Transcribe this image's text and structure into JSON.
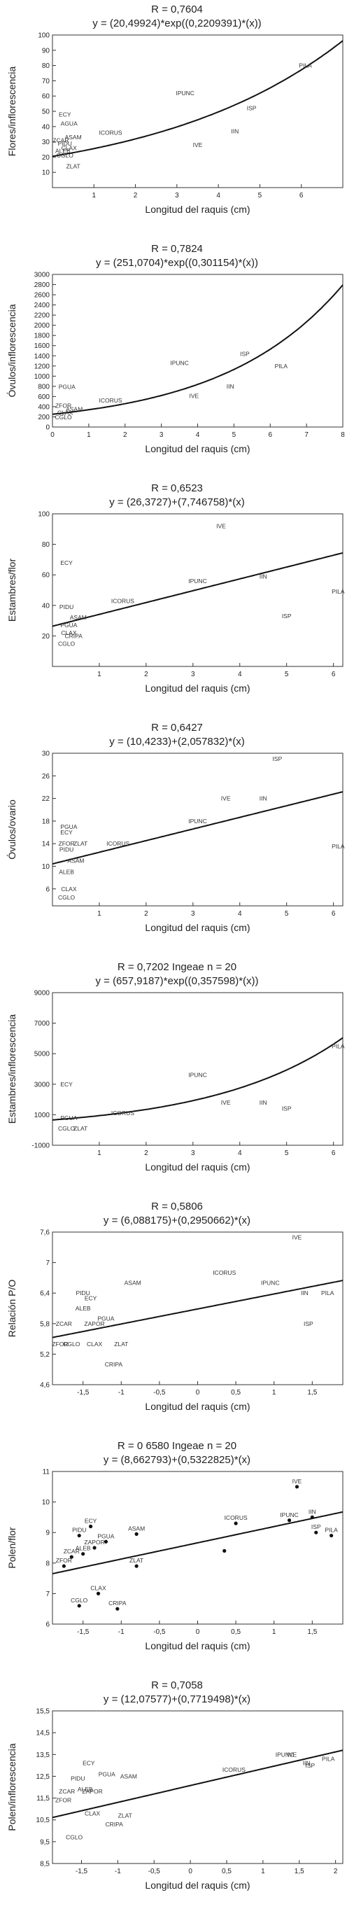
{
  "chart_data": [
    {
      "type": "scatter",
      "title": "R = 0,7604",
      "subtitle": "y = (20,49924)*exp((0,2209391)*(x))",
      "xlabel": "Longitud del raquis (cm)",
      "ylabel": "Flores/inflorescencia",
      "xlim": [
        0,
        7
      ],
      "ylim": [
        0,
        100
      ],
      "xticks": [
        1,
        2,
        3,
        4,
        5,
        6
      ],
      "yticks": [
        10,
        20,
        30,
        40,
        50,
        60,
        70,
        80,
        90,
        100
      ],
      "fit": {
        "kind": "exp",
        "a": 20.49924,
        "b": 0.2209391
      },
      "markers": false,
      "points": [
        {
          "label": "PILA",
          "x": 6.1,
          "y": 80
        },
        {
          "label": "IPUNC",
          "x": 3.2,
          "y": 62
        },
        {
          "label": "ISP",
          "x": 4.8,
          "y": 52
        },
        {
          "label": "IIN",
          "x": 4.4,
          "y": 37
        },
        {
          "label": "IVE",
          "x": 3.5,
          "y": 28
        },
        {
          "label": "ICORUS",
          "x": 1.4,
          "y": 36
        },
        {
          "label": "ECY",
          "x": 0.3,
          "y": 48
        },
        {
          "label": "AGUA",
          "x": 0.4,
          "y": 42
        },
        {
          "label": "ASAM",
          "x": 0.5,
          "y": 33
        },
        {
          "label": "ZCAR",
          "x": 0.2,
          "y": 31
        },
        {
          "label": "PIDU",
          "x": 0.3,
          "y": 29
        },
        {
          "label": "CLAX",
          "x": 0.4,
          "y": 26
        },
        {
          "label": "ALEB",
          "x": 0.25,
          "y": 24
        },
        {
          "label": "CGLO",
          "x": 0.3,
          "y": 21
        },
        {
          "label": "ZLAT",
          "x": 0.5,
          "y": 14
        }
      ]
    },
    {
      "type": "scatter",
      "title": "R = 0,7824",
      "subtitle": "y = (251,0704)*exp((0,301154)*(x))",
      "xlabel": "Longitud del raquis (cm)",
      "ylabel": "Óvulos/inflorescencia",
      "xlim": [
        0,
        8
      ],
      "ylim": [
        0,
        3000
      ],
      "xticks": [
        0,
        1,
        2,
        3,
        4,
        5,
        6,
        7,
        8
      ],
      "yticks": [
        0,
        200,
        400,
        600,
        800,
        1000,
        1200,
        1400,
        1600,
        1800,
        2000,
        2200,
        2400,
        2600,
        2800,
        3000
      ],
      "yticklabels": [
        "0",
        "200",
        "400",
        "600",
        "800",
        "1000",
        "1200",
        "1400",
        "1600",
        "1800",
        "2000",
        "2200",
        "2400",
        "2600",
        "2800",
        "3000"
      ],
      "fit": {
        "kind": "exp",
        "a": 251.0704,
        "b": 0.301154
      },
      "markers": false,
      "points": [
        {
          "label": "ISP",
          "x": 5.3,
          "y": 1440
        },
        {
          "label": "PILA",
          "x": 6.3,
          "y": 1200
        },
        {
          "label": "IPUNC",
          "x": 3.5,
          "y": 1260
        },
        {
          "label": "IIN",
          "x": 4.9,
          "y": 800
        },
        {
          "label": "IVE",
          "x": 3.9,
          "y": 610
        },
        {
          "label": "ICORUS",
          "x": 1.6,
          "y": 520
        },
        {
          "label": "PGUA",
          "x": 0.4,
          "y": 790
        },
        {
          "label": "ZFOR",
          "x": 0.3,
          "y": 420
        },
        {
          "label": "ASAM",
          "x": 0.6,
          "y": 350
        },
        {
          "label": "CLAX",
          "x": 0.35,
          "y": 280
        },
        {
          "label": "CGLO",
          "x": 0.3,
          "y": 190
        }
      ]
    },
    {
      "type": "scatter",
      "title": "R = 0,6523",
      "subtitle": "y = (26,3727)+(7,746758)*(x)",
      "xlabel": "Longitud del raquis (cm)",
      "ylabel": "Estambres/flor",
      "xlim": [
        0,
        6.2
      ],
      "ylim": [
        0,
        100
      ],
      "xticks": [
        1,
        2,
        3,
        4,
        5,
        6
      ],
      "yticks": [
        20,
        40,
        60,
        80,
        100
      ],
      "fit": {
        "kind": "linear",
        "a": 26.3727,
        "b": 7.746758
      },
      "markers": false,
      "points": [
        {
          "label": "IVE",
          "x": 3.6,
          "y": 92
        },
        {
          "label": "ECY",
          "x": 0.3,
          "y": 68
        },
        {
          "label": "IIN",
          "x": 4.5,
          "y": 59
        },
        {
          "label": "IPUNC",
          "x": 3.1,
          "y": 56
        },
        {
          "label": "PILA",
          "x": 6.1,
          "y": 49
        },
        {
          "label": "ICORUS",
          "x": 1.5,
          "y": 43
        },
        {
          "label": "PIDU",
          "x": 0.3,
          "y": 39
        },
        {
          "label": "ISP",
          "x": 5.0,
          "y": 33
        },
        {
          "label": "ASAM",
          "x": 0.55,
          "y": 32
        },
        {
          "label": "PGUA",
          "x": 0.35,
          "y": 27
        },
        {
          "label": "CLAX",
          "x": 0.35,
          "y": 22
        },
        {
          "label": "CRIPA",
          "x": 0.45,
          "y": 20
        },
        {
          "label": "CGLO",
          "x": 0.3,
          "y": 15
        }
      ]
    },
    {
      "type": "scatter",
      "title": "R = 0,6427",
      "subtitle": "y = (10,4233)+(2,057832)*(x)",
      "xlabel": "Longitud del raquis (cm)",
      "ylabel": "Óvulos/ovario",
      "xlim": [
        0,
        6.2
      ],
      "ylim": [
        3,
        30
      ],
      "xticks": [
        1,
        2,
        3,
        4,
        5,
        6
      ],
      "yticks": [
        6,
        10,
        14,
        18,
        22,
        26,
        30
      ],
      "fit": {
        "kind": "linear",
        "a": 10.4233,
        "b": 2.057832
      },
      "markers": false,
      "points": [
        {
          "label": "ISP",
          "x": 4.8,
          "y": 29
        },
        {
          "label": "IVE",
          "x": 3.7,
          "y": 22
        },
        {
          "label": "IIN",
          "x": 4.5,
          "y": 22
        },
        {
          "label": "IPUNC",
          "x": 3.1,
          "y": 18
        },
        {
          "label": "PGUA",
          "x": 0.35,
          "y": 17
        },
        {
          "label": "ECY",
          "x": 0.3,
          "y": 16
        },
        {
          "label": "ZFOR",
          "x": 0.3,
          "y": 14
        },
        {
          "label": "ZLAT",
          "x": 0.6,
          "y": 14
        },
        {
          "label": "ICORUS",
          "x": 1.4,
          "y": 14
        },
        {
          "label": "PILA",
          "x": 6.1,
          "y": 13.5
        },
        {
          "label": "PIDU",
          "x": 0.3,
          "y": 13
        },
        {
          "label": "ASAM",
          "x": 0.5,
          "y": 11
        },
        {
          "label": "ALEB",
          "x": 0.3,
          "y": 9
        },
        {
          "label": "CLAX",
          "x": 0.35,
          "y": 6
        },
        {
          "label": "CGLO",
          "x": 0.3,
          "y": 4.5
        }
      ]
    },
    {
      "type": "scatter",
      "title": "R = 0,7202 Ingeae n = 20",
      "subtitle": "y = (657,9187)*exp((0,357598)*(x))",
      "xlabel": "Longitud del raquis (cm)",
      "ylabel": "Estambres/inflorescencia",
      "xlim": [
        0,
        6.2
      ],
      "ylim": [
        -1000,
        9000
      ],
      "xticks": [
        1,
        2,
        3,
        4,
        5,
        6
      ],
      "yticks": [
        -1000,
        1000,
        3000,
        5000,
        7000,
        9000
      ],
      "fit": {
        "kind": "exp",
        "a": 657.9187,
        "b": 0.357598
      },
      "markers": false,
      "points": [
        {
          "label": "PILA",
          "x": 6.1,
          "y": 5500
        },
        {
          "label": "IPUNC",
          "x": 3.1,
          "y": 3600
        },
        {
          "label": "ECY",
          "x": 0.3,
          "y": 3000
        },
        {
          "label": "IVE",
          "x": 3.7,
          "y": 1800
        },
        {
          "label": "IIN",
          "x": 4.5,
          "y": 1800
        },
        {
          "label": "ISP",
          "x": 5.0,
          "y": 1400
        },
        {
          "label": "ICORUS",
          "x": 1.5,
          "y": 1100
        },
        {
          "label": "PGUA",
          "x": 0.35,
          "y": 800
        },
        {
          "label": "CGLO",
          "x": 0.3,
          "y": 100
        },
        {
          "label": "ZLAT",
          "x": 0.6,
          "y": 100
        }
      ]
    },
    {
      "type": "scatter",
      "title": "R = 0,5806",
      "subtitle": "y = (6,088175)+(0,2950662)*(x)",
      "xlabel": "Longitud del raquis (cm)",
      "ylabel": "Relación P/O",
      "xlim": [
        -1.9,
        1.9
      ],
      "ylim": [
        4.6,
        7.6
      ],
      "xticks": [
        -1.5,
        -1,
        -0.5,
        0,
        0.5,
        1,
        1.5
      ],
      "xticklabels": [
        "-1,5",
        "-1",
        "-0,5",
        "0",
        "0,5",
        "1",
        "1,5"
      ],
      "yticks": [
        4.6,
        5.2,
        5.8,
        6.4,
        7,
        7.6
      ],
      "yticklabels": [
        "4,6",
        "5,2",
        "5,8",
        "6,4",
        "7",
        "7,6"
      ],
      "fit": {
        "kind": "linear",
        "a": 6.088175,
        "b": 0.2950662
      },
      "markers": false,
      "points": [
        {
          "label": "IVE",
          "x": 1.3,
          "y": 7.5
        },
        {
          "label": "ICORUS",
          "x": 0.35,
          "y": 6.8
        },
        {
          "label": "ASAM",
          "x": -0.85,
          "y": 6.6
        },
        {
          "label": "IPUNC",
          "x": 0.95,
          "y": 6.6
        },
        {
          "label": "PIDU",
          "x": -1.5,
          "y": 6.4
        },
        {
          "label": "IIN",
          "x": 1.4,
          "y": 6.4
        },
        {
          "label": "PILA",
          "x": 1.7,
          "y": 6.4
        },
        {
          "label": "ECY",
          "x": -1.4,
          "y": 6.3
        },
        {
          "label": "ALEB",
          "x": -1.5,
          "y": 6.1
        },
        {
          "label": "PGUA",
          "x": -1.2,
          "y": 5.9
        },
        {
          "label": "ZCAR",
          "x": -1.75,
          "y": 5.8
        },
        {
          "label": "ZAPOR",
          "x": -1.35,
          "y": 5.8
        },
        {
          "label": "ISP",
          "x": 1.45,
          "y": 5.8
        },
        {
          "label": "ZFOR",
          "x": -1.8,
          "y": 5.4
        },
        {
          "label": "CGLO",
          "x": -1.65,
          "y": 5.4
        },
        {
          "label": "CLAX",
          "x": -1.35,
          "y": 5.4
        },
        {
          "label": "ZLAT",
          "x": -1.0,
          "y": 5.4
        },
        {
          "label": "CRIPA",
          "x": -1.1,
          "y": 5.0
        }
      ]
    },
    {
      "type": "scatter",
      "title": "R = 0 6580 Ingeae n = 20",
      "subtitle": "y = (8,662793)+(0,5322825)*(x)",
      "xlabel": "Longitud del raquis (cm)",
      "ylabel": "Polen/flor",
      "xlim": [
        -1.9,
        1.9
      ],
      "ylim": [
        6,
        11
      ],
      "xticks": [
        -1.5,
        -1,
        -0.5,
        0,
        0.5,
        1,
        1.5
      ],
      "xticklabels": [
        "-1,5",
        "-1",
        "-0,5",
        "0",
        "0,5",
        "1",
        "1,5"
      ],
      "yticks": [
        6,
        7,
        8,
        9,
        10,
        11
      ],
      "fit": {
        "kind": "linear",
        "a": 8.662793,
        "b": 0.5322825
      },
      "markers": true,
      "points": [
        {
          "label": "IVE",
          "x": 1.3,
          "y": 10.5
        },
        {
          "label": "ICORUS",
          "x": 0.5,
          "y": 9.3
        },
        {
          "label": "IPUNC",
          "x": 1.2,
          "y": 9.4
        },
        {
          "label": "IIN",
          "x": 1.5,
          "y": 9.5
        },
        {
          "label": "ISP",
          "x": 1.55,
          "y": 9.0
        },
        {
          "label": "PILA",
          "x": 1.75,
          "y": 8.9
        },
        {
          "label": "ECY",
          "x": -1.4,
          "y": 9.2
        },
        {
          "label": "PIDU",
          "x": -1.55,
          "y": 8.9
        },
        {
          "label": "ASAM",
          "x": -0.8,
          "y": 8.95
        },
        {
          "label": "PGUA",
          "x": -1.2,
          "y": 8.7
        },
        {
          "label": "ZAPOR",
          "x": -1.35,
          "y": 8.5
        },
        {
          "label": "ALEB",
          "x": -1.5,
          "y": 8.3
        },
        {
          "label": "ZCAR",
          "x": -1.65,
          "y": 8.2
        },
        {
          "label": "ZFOR",
          "x": -1.75,
          "y": 7.9
        },
        {
          "label": "ZLAT",
          "x": -0.8,
          "y": 7.9
        },
        {
          "label": "CLAX",
          "x": -1.3,
          "y": 7.0
        },
        {
          "label": "CGLO",
          "x": -1.55,
          "y": 6.6
        },
        {
          "label": "CRIPA",
          "x": -1.05,
          "y": 6.5
        },
        {
          "label": "",
          "x": 0.35,
          "y": 8.4
        }
      ]
    },
    {
      "type": "scatter",
      "title": "R = 0,7058",
      "subtitle": "y = (12,07577)+(0,7719498)*(x)",
      "xlabel": "Longitud del raquis (cm)",
      "ylabel": "Polen/inflorescencia",
      "xlim": [
        -1.9,
        2.1
      ],
      "ylim": [
        8.5,
        15.5
      ],
      "xticks": [
        -1.5,
        -1,
        -0.5,
        0,
        0.5,
        1,
        1.5,
        2
      ],
      "xticklabels": [
        "-1,5",
        "-1",
        "-0,5",
        "0",
        "0,5",
        "1",
        "1,5",
        "2"
      ],
      "yticks": [
        8.5,
        9.5,
        10.5,
        11.5,
        12.5,
        13.5,
        14.5,
        15.5
      ],
      "yticklabels": [
        "8,5",
        "9,5",
        "10,5",
        "11,5",
        "12,5",
        "13,5",
        "14,5",
        "15,5"
      ],
      "fit": {
        "kind": "linear",
        "a": 12.07577,
        "b": 0.7719498
      },
      "markers": false,
      "points": [
        {
          "label": "IPUNC",
          "x": 1.3,
          "y": 13.5
        },
        {
          "label": "IVE",
          "x": 1.4,
          "y": 13.5
        },
        {
          "label": "PILA",
          "x": 1.9,
          "y": 13.3
        },
        {
          "label": "IIN",
          "x": 1.6,
          "y": 13.1
        },
        {
          "label": "ISP",
          "x": 1.65,
          "y": 13.0
        },
        {
          "label": "ICORUS",
          "x": 0.6,
          "y": 12.8
        },
        {
          "label": "ECY",
          "x": -1.4,
          "y": 13.1
        },
        {
          "label": "PGUA",
          "x": -1.15,
          "y": 12.6
        },
        {
          "label": "ASAM",
          "x": -0.85,
          "y": 12.5
        },
        {
          "label": "PIDU",
          "x": -1.55,
          "y": 12.4
        },
        {
          "label": "ALEB",
          "x": -1.45,
          "y": 11.9
        },
        {
          "label": "ZAPOR",
          "x": -1.35,
          "y": 11.8
        },
        {
          "label": "ZCAR",
          "x": -1.7,
          "y": 11.8
        },
        {
          "label": "ZFOR",
          "x": -1.75,
          "y": 11.4
        },
        {
          "label": "CLAX",
          "x": -1.35,
          "y": 10.8
        },
        {
          "label": "ZLAT",
          "x": -0.9,
          "y": 10.7
        },
        {
          "label": "CRIPA",
          "x": -1.05,
          "y": 10.3
        },
        {
          "label": "CGLO",
          "x": -1.6,
          "y": 9.7
        }
      ]
    }
  ]
}
